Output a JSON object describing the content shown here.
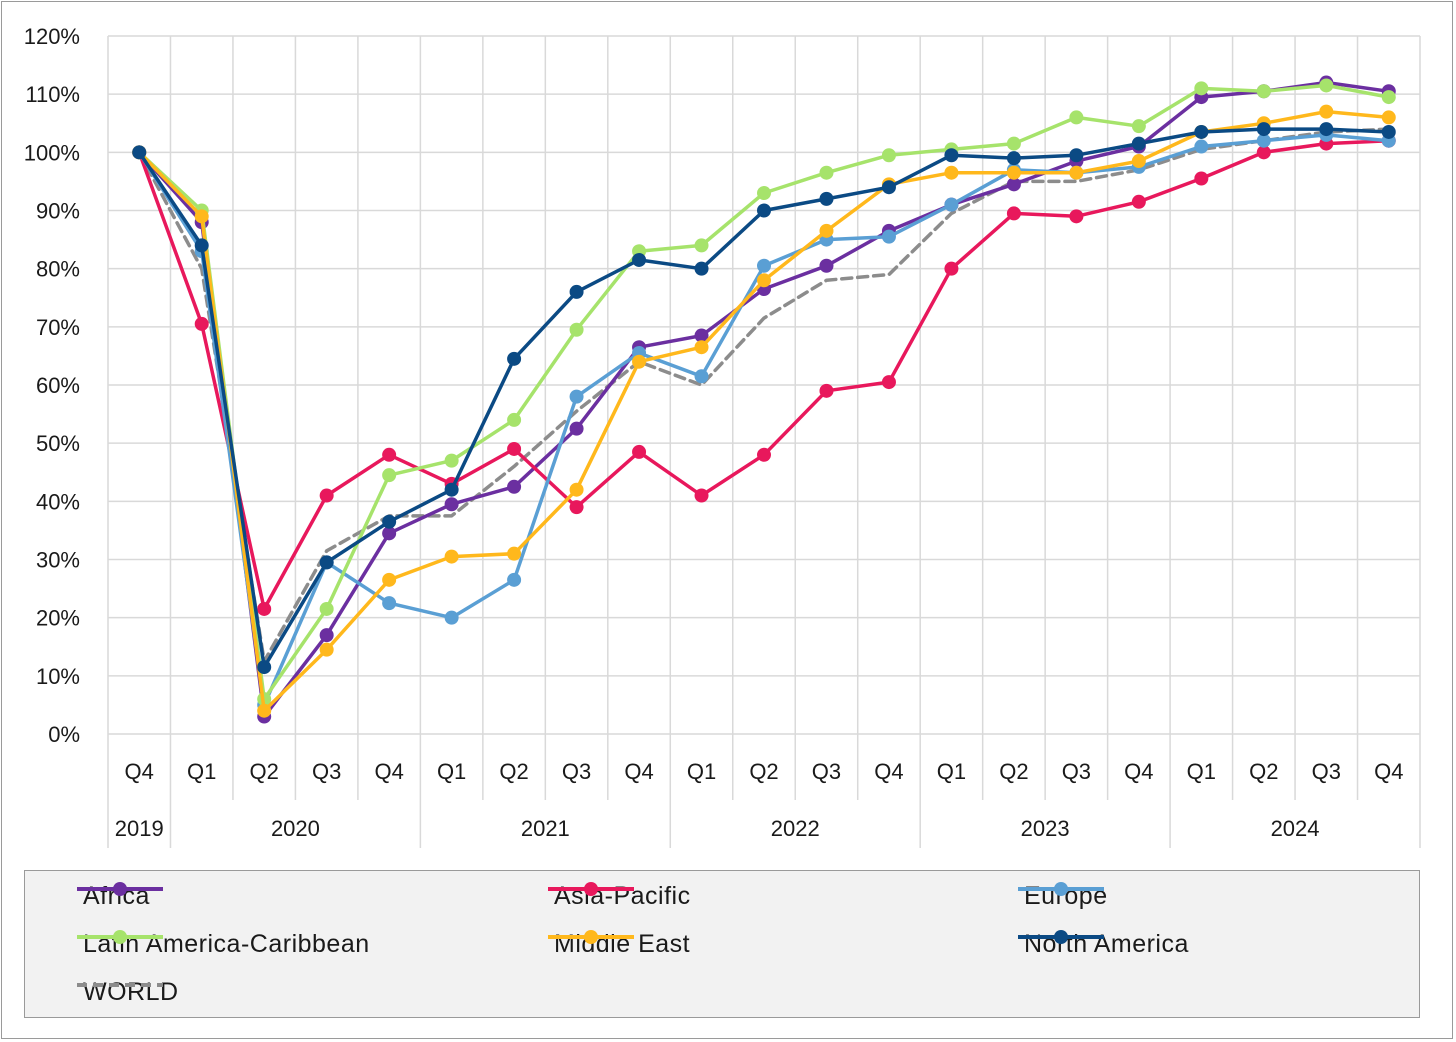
{
  "chart_data": {
    "type": "line",
    "title": "",
    "xlabel": "",
    "ylabel": "",
    "ylim": [
      0,
      120
    ],
    "yticks": [
      "0%",
      "10%",
      "20%",
      "30%",
      "40%",
      "50%",
      "60%",
      "70%",
      "80%",
      "90%",
      "100%",
      "110%",
      "120%"
    ],
    "quarters": [
      "Q4",
      "Q1",
      "Q2",
      "Q3",
      "Q4",
      "Q1",
      "Q2",
      "Q3",
      "Q4",
      "Q1",
      "Q2",
      "Q3",
      "Q4",
      "Q1",
      "Q2",
      "Q3",
      "Q4",
      "Q1",
      "Q2",
      "Q3",
      "Q4"
    ],
    "years": [
      {
        "label": "2019",
        "start": 0,
        "end": 0
      },
      {
        "label": "2020",
        "start": 1,
        "end": 4
      },
      {
        "label": "2021",
        "start": 5,
        "end": 8
      },
      {
        "label": "2022",
        "start": 9,
        "end": 12
      },
      {
        "label": "2023",
        "start": 13,
        "end": 16
      },
      {
        "label": "2024",
        "start": 17,
        "end": 20
      }
    ],
    "grid": true,
    "legend_position": "bottom",
    "series": [
      {
        "name": "Africa",
        "color": "#6b2fa0",
        "dashed": false,
        "markers": true,
        "values": [
          100,
          88,
          3,
          17,
          34.5,
          39.5,
          42.5,
          52.5,
          66.5,
          68.5,
          76.5,
          80.5,
          86.5,
          91,
          94.5,
          98.5,
          101,
          109.5,
          110.5,
          112,
          110.5
        ]
      },
      {
        "name": "Asia-Pacific",
        "color": "#e8185c",
        "dashed": false,
        "markers": true,
        "values": [
          100,
          70.5,
          21.5,
          41,
          48,
          43,
          49,
          39,
          48.5,
          41,
          48,
          59,
          60.5,
          80,
          89.5,
          89,
          91.5,
          95.5,
          100,
          101.5,
          102
        ]
      },
      {
        "name": "Europe",
        "color": "#5a9fd4",
        "dashed": false,
        "markers": true,
        "values": [
          100,
          83,
          5,
          29.5,
          22.5,
          20,
          26.5,
          58,
          65.5,
          61.5,
          80.5,
          85,
          85.5,
          91,
          97,
          96.5,
          97.5,
          101,
          102,
          103,
          102
        ]
      },
      {
        "name": "Latin America-Caribbean",
        "color": "#a6e36b",
        "dashed": false,
        "markers": true,
        "values": [
          100,
          90,
          6,
          21.5,
          44.5,
          47,
          54,
          69.5,
          83,
          84,
          93,
          96.5,
          99.5,
          100.5,
          101.5,
          106,
          104.5,
          111,
          110.5,
          111.5,
          109.5
        ]
      },
      {
        "name": "Middle East",
        "color": "#ffb81c",
        "dashed": false,
        "markers": true,
        "values": [
          100,
          89,
          4,
          14.5,
          26.5,
          30.5,
          31,
          42,
          64,
          66.5,
          78,
          86.5,
          94.5,
          96.5,
          96.5,
          96.5,
          98.5,
          103.5,
          105,
          107,
          106
        ]
      },
      {
        "name": "North America",
        "color": "#0b4a84",
        "dashed": false,
        "markers": true,
        "values": [
          100,
          84,
          11.5,
          29.5,
          36.5,
          42,
          64.5,
          76,
          81.5,
          80,
          90,
          92,
          94,
          99.5,
          99,
          99.5,
          101.5,
          103.5,
          104,
          104,
          103.5
        ]
      },
      {
        "name": "WORLD",
        "color": "#8c8c8c",
        "dashed": true,
        "markers": false,
        "values": [
          100,
          80,
          12.5,
          31.5,
          37.5,
          37.5,
          46,
          55.5,
          64,
          60,
          71.5,
          78,
          79,
          89.5,
          95,
          95,
          97,
          100.5,
          102,
          103.5,
          104
        ]
      }
    ]
  },
  "legend": {
    "items": [
      "Africa",
      "Asia-Pacific",
      "Europe",
      "Latin America-Caribbean",
      "Middle East",
      "North America",
      "WORLD"
    ]
  }
}
